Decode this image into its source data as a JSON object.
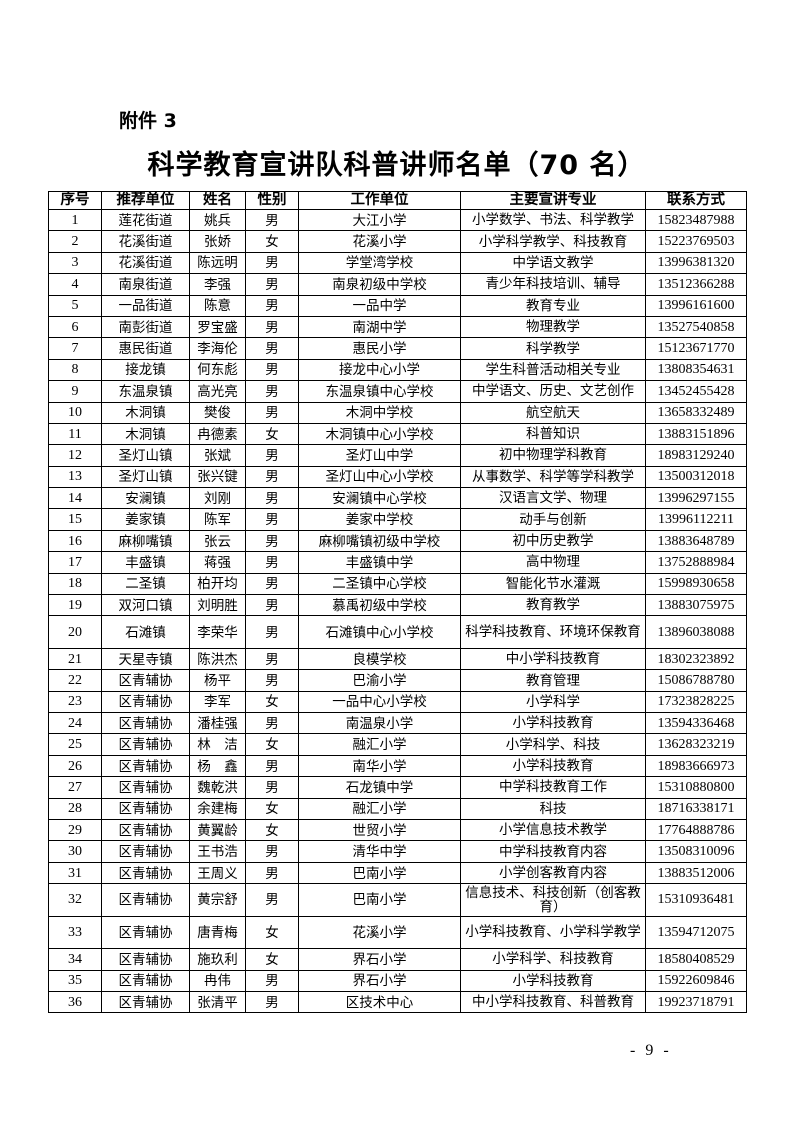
{
  "attachment_label": "附件 3",
  "title": "科学教育宣讲队科普讲师名单（70 名）",
  "table": {
    "headers": [
      "序号",
      "推荐单位",
      "姓名",
      "性别",
      "工作单位",
      "主要宣讲专业",
      "联系方式"
    ],
    "rows": [
      [
        "1",
        "莲花街道",
        "姚兵",
        "男",
        "大江小学",
        "小学数学、书法、科学教学",
        "15823487988"
      ],
      [
        "2",
        "花溪街道",
        "张娇",
        "女",
        "花溪小学",
        "小学科学教学、科技教育",
        "15223769503"
      ],
      [
        "3",
        "花溪街道",
        "陈远明",
        "男",
        "学堂湾学校",
        "中学语文教学",
        "13996381320"
      ],
      [
        "4",
        "南泉街道",
        "李强",
        "男",
        "南泉初级中学校",
        "青少年科技培训、辅导",
        "13512366288"
      ],
      [
        "5",
        "一品街道",
        "陈意",
        "男",
        "一品中学",
        "教育专业",
        "13996161600"
      ],
      [
        "6",
        "南彭街道",
        "罗宝盛",
        "男",
        "南湖中学",
        "物理教学",
        "13527540858"
      ],
      [
        "7",
        "惠民街道",
        "李海伦",
        "男",
        "惠民小学",
        "科学教学",
        "15123671770"
      ],
      [
        "8",
        "接龙镇",
        "何东彪",
        "男",
        "接龙中心小学",
        "学生科普活动相关专业",
        "13808354631"
      ],
      [
        "9",
        "东温泉镇",
        "高光亮",
        "男",
        "东温泉镇中心学校",
        "中学语文、历史、文艺创作",
        "13452455428"
      ],
      [
        "10",
        "木洞镇",
        "樊俊",
        "男",
        "木洞中学校",
        "航空航天",
        "13658332489"
      ],
      [
        "11",
        "木洞镇",
        "冉德素",
        "女",
        "木洞镇中心小学校",
        "科普知识",
        "13883151896"
      ],
      [
        "12",
        "圣灯山镇",
        "张斌",
        "男",
        "圣灯山中学",
        "初中物理学科教育",
        "18983129240"
      ],
      [
        "13",
        "圣灯山镇",
        "张兴键",
        "男",
        "圣灯山中心小学校",
        "从事数学、科学等学科教学",
        "13500312018"
      ],
      [
        "14",
        "安澜镇",
        "刘刚",
        "男",
        "安澜镇中心学校",
        "汉语言文学、物理",
        "13996297155"
      ],
      [
        "15",
        "姜家镇",
        "陈军",
        "男",
        "姜家中学校",
        "动手与创新",
        "13996112211"
      ],
      [
        "16",
        "麻柳嘴镇",
        "张云",
        "男",
        "麻柳嘴镇初级中学校",
        "初中历史教学",
        "13883648789"
      ],
      [
        "17",
        "丰盛镇",
        "蒋强",
        "男",
        "丰盛镇中学",
        "高中物理",
        "13752888984"
      ],
      [
        "18",
        "二圣镇",
        "柏开均",
        "男",
        "二圣镇中心学校",
        "智能化节水灌溉",
        "15998930658"
      ],
      [
        "19",
        "双河口镇",
        "刘明胜",
        "男",
        "慕禹初级中学校",
        "教育教学",
        "13883075975"
      ],
      [
        "20",
        "石滩镇",
        "李荣华",
        "男",
        "石滩镇中心小学校",
        "科学科技教育、环境环保教育",
        "13896038088"
      ],
      [
        "21",
        "天星寺镇",
        "陈洪杰",
        "男",
        "良模学校",
        "中小学科技教育",
        "18302323892"
      ],
      [
        "22",
        "区青辅协",
        "杨平",
        "男",
        "巴渝小学",
        "教育管理",
        "15086788780"
      ],
      [
        "23",
        "区青辅协",
        "李军",
        "女",
        "一品中心小学校",
        "小学科学",
        "17323828225"
      ],
      [
        "24",
        "区青辅协",
        "潘桂强",
        "男",
        "南温泉小学",
        "小学科技教育",
        "13594336468"
      ],
      [
        "25",
        "区青辅协",
        "林　洁",
        "女",
        "融汇小学",
        "小学科学、科技",
        "13628323219"
      ],
      [
        "26",
        "区青辅协",
        "杨　鑫",
        "男",
        "南华小学",
        "小学科技教育",
        "18983666973"
      ],
      [
        "27",
        "区青辅协",
        "魏乾洪",
        "男",
        "石龙镇中学",
        "中学科技教育工作",
        "15310880800"
      ],
      [
        "28",
        "区青辅协",
        "余建梅",
        "女",
        "融汇小学",
        "科技",
        "18716338171"
      ],
      [
        "29",
        "区青辅协",
        "黄翼龄",
        "女",
        "世贸小学",
        "小学信息技术教学",
        "17764888786"
      ],
      [
        "30",
        "区青辅协",
        "王书浩",
        "男",
        "清华中学",
        "中学科技教育内容",
        "13508310096"
      ],
      [
        "31",
        "区青辅协",
        "王周义",
        "男",
        "巴南小学",
        "小学创客教育内容",
        "13883512006"
      ],
      [
        "32",
        "区青辅协",
        "黄宗舒",
        "男",
        "巴南小学",
        "信息技术、科技创新（创客教育）",
        "15310936481"
      ],
      [
        "33",
        "区青辅协",
        "唐青梅",
        "女",
        "花溪小学",
        "小学科技教育、小学科学教学",
        "13594712075"
      ],
      [
        "34",
        "区青辅协",
        "施玖利",
        "女",
        "界石小学",
        "小学科学、科技教育",
        "18580408529"
      ],
      [
        "35",
        "区青辅协",
        "冉伟",
        "男",
        "界石小学",
        "小学科技教育",
        "15922609846"
      ],
      [
        "36",
        "区青辅协",
        "张清平",
        "男",
        "区技术中心",
        "中小学科技教育、科普教育",
        "19923718791"
      ]
    ]
  },
  "page_number": "- 9 -"
}
